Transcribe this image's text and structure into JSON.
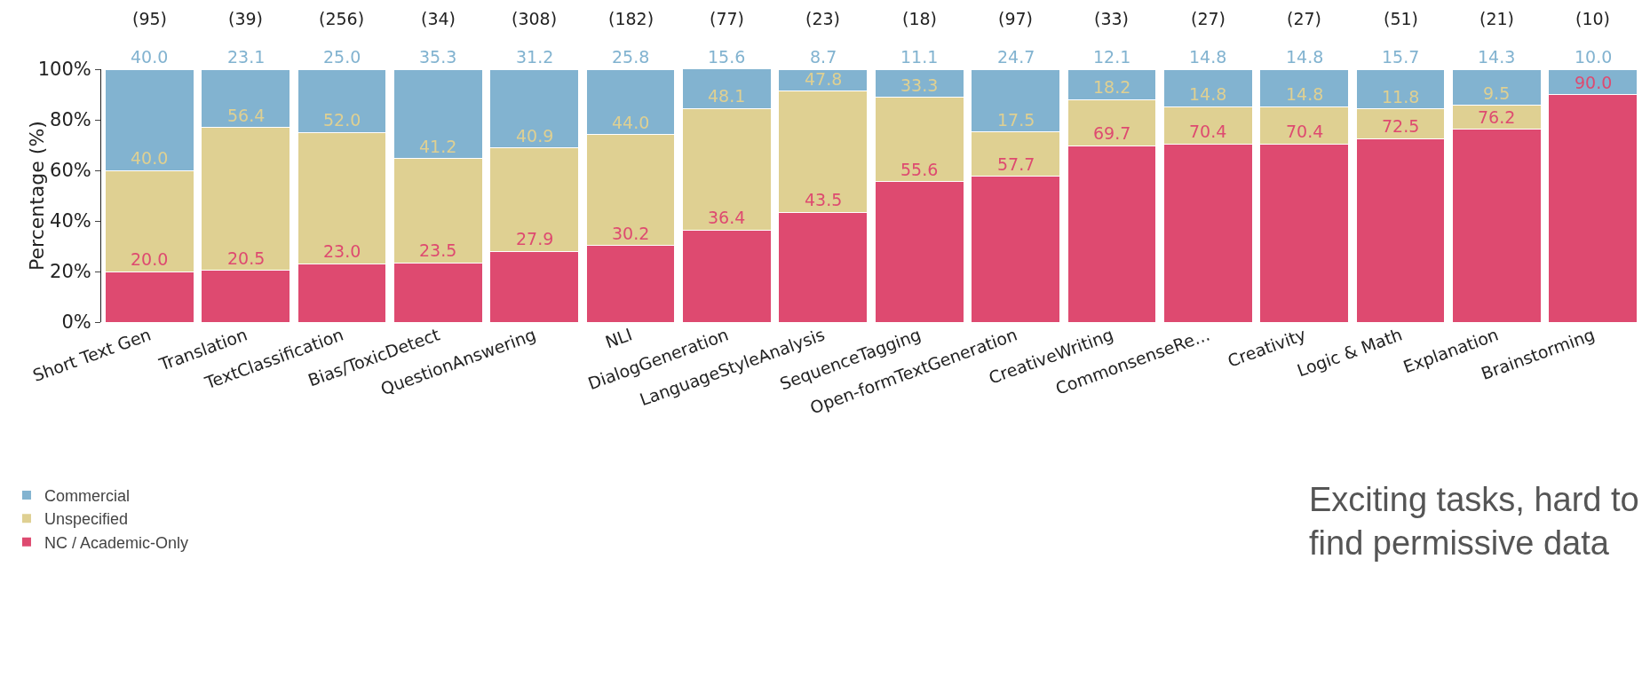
{
  "chart_data": {
    "type": "bar",
    "stacked": true,
    "ylabel": "Percentage (%)",
    "categories": [
      "Short Text Gen",
      "Translation",
      "TextClassification",
      "Bias/ToxicDetect",
      "QuestionAnswering",
      "NLI",
      "DialogGeneration",
      "LanguageStyleAnalysis",
      "SequenceTagging",
      "Open-formTextGeneration",
      "CreativeWriting",
      "CommonsenseRe...",
      "Creativity",
      "Logic & Math",
      "Explanation",
      "Brainstorming"
    ],
    "series": [
      {
        "name": "NC / Academic-Only",
        "color": "#de4a70",
        "values": [
          20.0,
          20.5,
          23.0,
          23.5,
          27.9,
          30.2,
          36.4,
          43.5,
          55.6,
          57.7,
          69.7,
          70.4,
          70.4,
          72.5,
          76.2,
          90.0
        ],
        "value_labels": [
          "20.0",
          "20.5",
          "23.0",
          "23.5",
          "27.9",
          "30.2",
          "36.4",
          "43.5",
          "55.6",
          "57.7",
          "69.7",
          "70.4",
          "70.4",
          "72.5",
          "76.2",
          "90.0"
        ]
      },
      {
        "name": "Unspecified",
        "color": "#dfd092",
        "values": [
          40.0,
          56.4,
          52.0,
          41.2,
          40.9,
          44.0,
          48.1,
          47.8,
          33.3,
          17.5,
          18.2,
          14.8,
          14.8,
          11.8,
          9.5,
          0
        ],
        "value_labels": [
          "40.0",
          "56.4",
          "52.0",
          "41.2",
          "40.9",
          "44.0",
          "48.1",
          "47.8",
          "33.3",
          "17.5",
          "18.2",
          "14.8",
          "14.8",
          "11.8",
          "9.5",
          null
        ]
      },
      {
        "name": "Commercial",
        "color": "#82b3d0",
        "values": [
          40.0,
          23.1,
          25.0,
          35.3,
          31.2,
          25.8,
          15.6,
          8.7,
          11.1,
          24.7,
          12.1,
          14.8,
          14.8,
          15.7,
          14.3,
          10.0
        ],
        "value_labels": [
          "40.0",
          "23.1",
          "25.0",
          "35.3",
          "31.2",
          "25.8",
          "15.6",
          "8.7",
          "11.1",
          "24.7",
          "12.1",
          "14.8",
          "14.8",
          "15.7",
          "14.3",
          "10.0"
        ]
      }
    ],
    "ylim": [
      0,
      100
    ],
    "yticks": [
      {
        "value": 0,
        "label": "0%"
      },
      {
        "value": 20,
        "label": "20%"
      },
      {
        "value": 40,
        "label": "40%"
      },
      {
        "value": 60,
        "label": "60%"
      },
      {
        "value": 80,
        "label": "80%"
      },
      {
        "value": 100,
        "label": "100%"
      }
    ],
    "grid": false,
    "legend": "bottom left",
    "annotations": [
      "(95)",
      "(39)",
      "(256)",
      "(34)",
      "(308)",
      "(182)",
      "(77)",
      "(23)",
      "(18)",
      "(97)",
      "(33)",
      "(27)",
      "(27)",
      "(51)",
      "(21)",
      "(10)",
      "Exciting tasks, hard to find permissive data"
    ]
  }
}
